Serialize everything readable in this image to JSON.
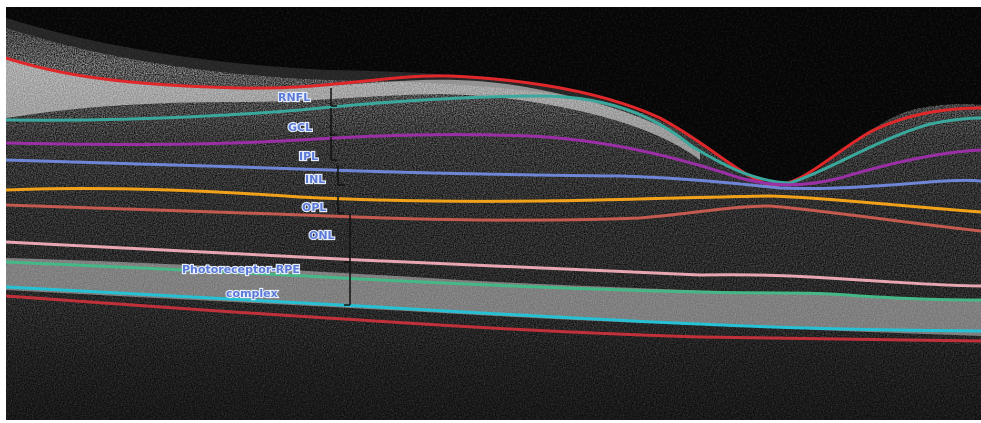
{
  "image": {
    "kind": "retinal OCT B-scan with segmented layer boundaries",
    "labels": [
      {
        "id": "rnfl",
        "text": "RNFL"
      },
      {
        "id": "gcl",
        "text": "GCL"
      },
      {
        "id": "ipl",
        "text": "IPL"
      },
      {
        "id": "inl",
        "text": "INL"
      },
      {
        "id": "opl",
        "text": "OPL"
      },
      {
        "id": "onl",
        "text": "ONL"
      },
      {
        "id": "prpe1",
        "text": "Photoreceptor-RPE"
      },
      {
        "id": "prpe2",
        "text": "complex"
      }
    ],
    "boundary_colors": {
      "ilm": "#e0282b",
      "rnfl_gcl": "#3aa89c",
      "gcl_ipl": "#9a2fa6",
      "ipl_inl": "#6f86d6",
      "inl_opl": "#f2a21a",
      "opl_onl": "#c45a50",
      "elm": "#e7a6b2",
      "isos": "#45b888",
      "rpe": "#26c1d4",
      "bruch": "#c2303a"
    },
    "label_color": "#5b79d6"
  }
}
